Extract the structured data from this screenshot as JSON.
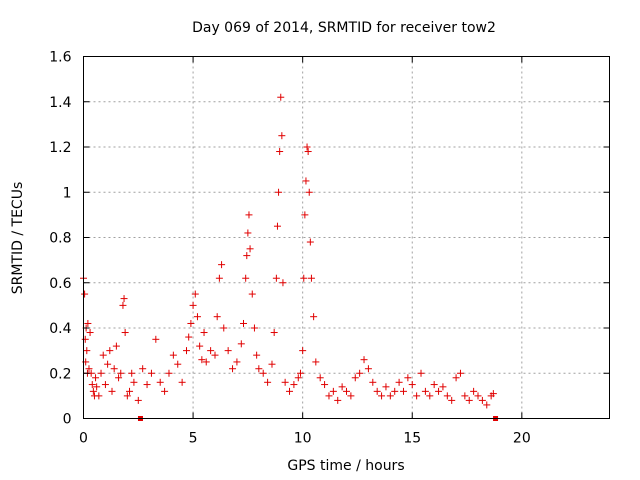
{
  "chart_data": {
    "type": "scatter",
    "title": "Day 069 of 2014, SRMTID for receiver tow2",
    "xlabel": "GPS time / hours",
    "ylabel": "SRMTID / TECUs",
    "xlim": [
      0,
      24
    ],
    "ylim": [
      0,
      1.6
    ],
    "xticks": [
      0,
      5,
      10,
      15,
      20
    ],
    "yticks": [
      0,
      0.2,
      0.4,
      0.6,
      0.8,
      1,
      1.2,
      1.4,
      1.6
    ],
    "xtick_labels": [
      "0",
      "5",
      "10",
      "15",
      "20"
    ],
    "ytick_labels": [
      "0",
      "0.2",
      "0.4",
      "0.6",
      "0.8",
      "1",
      "1.2",
      "1.4",
      "1.6"
    ],
    "grid": true,
    "marker": "plus",
    "marker_color": "#e00000",
    "series": [
      {
        "name": "SRMTID",
        "x": [
          0.0,
          0.05,
          0.08,
          0.1,
          0.12,
          0.15,
          0.18,
          0.2,
          0.25,
          0.3,
          0.35,
          0.4,
          0.45,
          0.5,
          0.55,
          0.6,
          0.7,
          0.8,
          0.9,
          1.0,
          1.1,
          1.2,
          1.3,
          1.4,
          1.5,
          1.6,
          1.7,
          1.8,
          1.85,
          1.9,
          2.0,
          2.1,
          2.2,
          2.3,
          2.5,
          2.7,
          2.9,
          3.1,
          3.3,
          3.5,
          3.7,
          3.9,
          4.1,
          4.3,
          4.5,
          4.7,
          4.8,
          4.9,
          5.0,
          5.1,
          5.2,
          5.3,
          5.4,
          5.5,
          5.6,
          5.8,
          6.0,
          6.1,
          6.2,
          6.3,
          6.4,
          6.6,
          6.8,
          7.0,
          7.2,
          7.3,
          7.4,
          7.45,
          7.5,
          7.55,
          7.6,
          7.7,
          7.8,
          7.9,
          8.0,
          8.2,
          8.4,
          8.6,
          8.7,
          8.8,
          8.85,
          8.9,
          8.95,
          9.0,
          9.05,
          9.1,
          9.2,
          9.4,
          9.6,
          9.8,
          9.9,
          10.0,
          10.05,
          10.1,
          10.15,
          10.2,
          10.25,
          10.3,
          10.35,
          10.4,
          10.5,
          10.6,
          10.8,
          11.0,
          11.2,
          11.4,
          11.6,
          11.8,
          12.0,
          12.2,
          12.4,
          12.6,
          12.8,
          13.0,
          13.2,
          13.4,
          13.6,
          13.8,
          14.0,
          14.2,
          14.4,
          14.6,
          14.8,
          15.0,
          15.2,
          15.4,
          15.6,
          15.8,
          16.0,
          16.2,
          16.4,
          16.6,
          16.8,
          17.0,
          17.2,
          17.4,
          17.6,
          17.8,
          18.0,
          18.2,
          18.4,
          18.6,
          18.7
        ],
        "y": [
          0.62,
          0.55,
          0.35,
          0.25,
          0.4,
          0.3,
          0.2,
          0.42,
          0.22,
          0.38,
          0.2,
          0.15,
          0.12,
          0.1,
          0.18,
          0.14,
          0.1,
          0.2,
          0.28,
          0.15,
          0.24,
          0.3,
          0.12,
          0.22,
          0.32,
          0.18,
          0.2,
          0.5,
          0.53,
          0.38,
          0.1,
          0.12,
          0.2,
          0.16,
          0.08,
          0.22,
          0.15,
          0.2,
          0.35,
          0.16,
          0.12,
          0.2,
          0.28,
          0.24,
          0.16,
          0.3,
          0.36,
          0.42,
          0.5,
          0.55,
          0.45,
          0.32,
          0.26,
          0.38,
          0.25,
          0.3,
          0.28,
          0.45,
          0.62,
          0.68,
          0.4,
          0.3,
          0.22,
          0.25,
          0.33,
          0.42,
          0.62,
          0.72,
          0.82,
          0.9,
          0.75,
          0.55,
          0.4,
          0.28,
          0.22,
          0.2,
          0.16,
          0.24,
          0.38,
          0.62,
          0.85,
          1.0,
          1.18,
          1.42,
          1.25,
          0.6,
          0.16,
          0.12,
          0.15,
          0.18,
          0.2,
          0.3,
          0.62,
          0.9,
          1.05,
          1.2,
          1.18,
          1.0,
          0.78,
          0.62,
          0.45,
          0.25,
          0.18,
          0.15,
          0.1,
          0.12,
          0.08,
          0.14,
          0.12,
          0.1,
          0.18,
          0.2,
          0.26,
          0.22,
          0.16,
          0.12,
          0.1,
          0.14,
          0.1,
          0.12,
          0.16,
          0.12,
          0.18,
          0.15,
          0.1,
          0.2,
          0.12,
          0.1,
          0.15,
          0.12,
          0.14,
          0.1,
          0.08,
          0.18,
          0.2,
          0.1,
          0.08,
          0.12,
          0.1,
          0.08,
          0.06,
          0.1,
          0.11
        ]
      }
    ],
    "markers_on_axis": [
      {
        "name": "gap-start",
        "x": 2.6
      },
      {
        "name": "data-end",
        "x": 18.8
      }
    ]
  }
}
